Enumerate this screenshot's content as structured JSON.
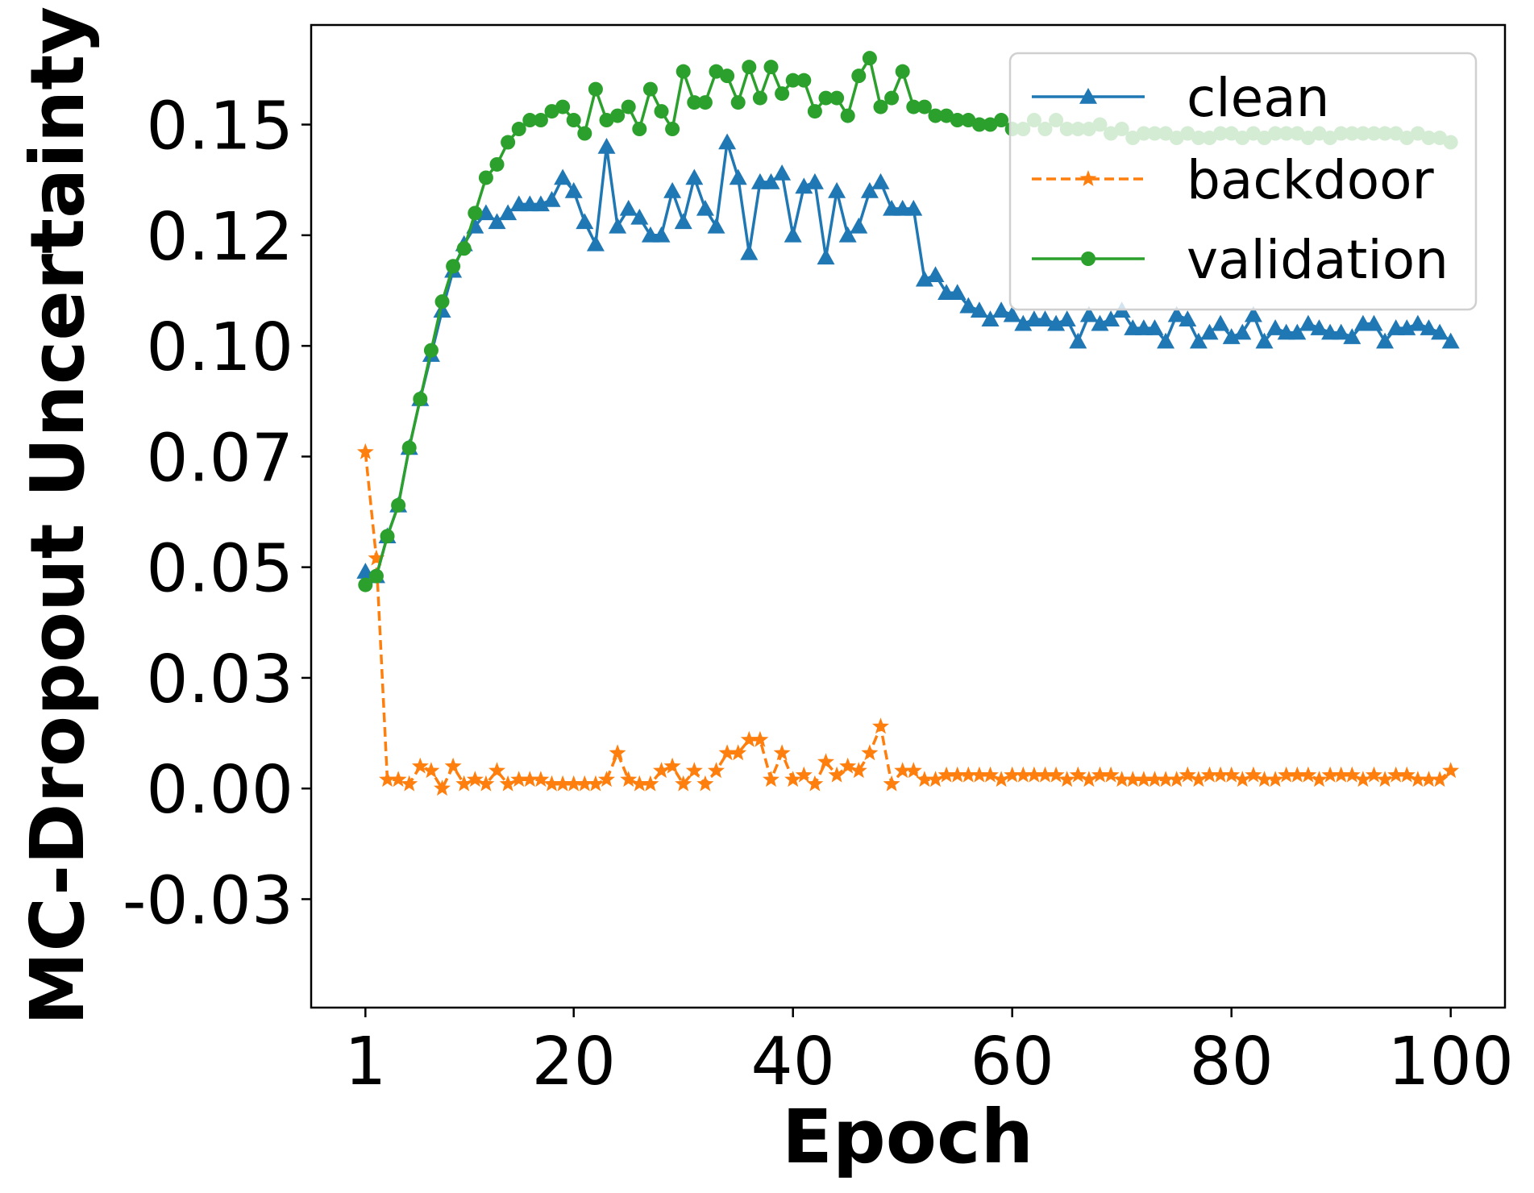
{
  "chart_data": {
    "type": "line",
    "title": "",
    "xlabel": "Epoch",
    "ylabel": "MC-Dropout Uncertainty",
    "xlim": [
      -3.95,
      104.95
    ],
    "ylim": [
      -0.0495,
      0.1725
    ],
    "x_ticks": [
      {
        "value": 1,
        "label": "1"
      },
      {
        "value": 20,
        "label": "20"
      },
      {
        "value": 40,
        "label": "40"
      },
      {
        "value": 60,
        "label": "60"
      },
      {
        "value": 80,
        "label": "80"
      },
      {
        "value": 100,
        "label": "100"
      }
    ],
    "y_ticks": [
      {
        "value": -0.025,
        "label": "-0.03"
      },
      {
        "value": 0.0,
        "label": "0.00"
      },
      {
        "value": 0.025,
        "label": "0.03"
      },
      {
        "value": 0.05,
        "label": "0.05"
      },
      {
        "value": 0.075,
        "label": "0.07"
      },
      {
        "value": 0.1,
        "label": "0.10"
      },
      {
        "value": 0.125,
        "label": "0.12"
      },
      {
        "value": 0.15,
        "label": "0.15"
      }
    ],
    "grid": false,
    "legend_position": "top-right",
    "x": [
      1,
      2,
      3,
      4,
      5,
      6,
      7,
      8,
      9,
      10,
      11,
      12,
      13,
      14,
      15,
      16,
      17,
      18,
      19,
      20,
      21,
      22,
      23,
      24,
      25,
      26,
      27,
      28,
      29,
      30,
      31,
      32,
      33,
      34,
      35,
      36,
      37,
      38,
      39,
      40,
      41,
      42,
      43,
      44,
      45,
      46,
      47,
      48,
      49,
      50,
      51,
      52,
      53,
      54,
      55,
      56,
      57,
      58,
      59,
      60,
      61,
      62,
      63,
      64,
      65,
      66,
      67,
      68,
      69,
      70,
      71,
      72,
      73,
      74,
      75,
      76,
      77,
      78,
      79,
      80,
      81,
      82,
      83,
      84,
      85,
      86,
      87,
      88,
      89,
      90,
      91,
      92,
      93,
      94,
      95,
      96,
      97,
      98,
      99,
      100
    ],
    "series": [
      {
        "name": "clean",
        "color": "#1f77b4",
        "marker": "triangle",
        "line_style": "solid",
        "values": [
          0.049,
          0.048,
          0.057,
          0.064,
          0.077,
          0.088,
          0.098,
          0.108,
          0.117,
          0.123,
          0.127,
          0.13,
          0.128,
          0.13,
          0.132,
          0.132,
          0.132,
          0.133,
          0.138,
          0.135,
          0.128,
          0.123,
          0.145,
          0.127,
          0.131,
          0.129,
          0.125,
          0.125,
          0.135,
          0.128,
          0.138,
          0.131,
          0.127,
          0.146,
          0.138,
          0.121,
          0.137,
          0.137,
          0.139,
          0.125,
          0.136,
          0.137,
          0.12,
          0.135,
          0.125,
          0.127,
          0.135,
          0.137,
          0.131,
          0.131,
          0.131,
          0.115,
          0.116,
          0.112,
          0.112,
          0.109,
          0.108,
          0.106,
          0.108,
          0.107,
          0.105,
          0.106,
          0.106,
          0.105,
          0.106,
          0.101,
          0.107,
          0.105,
          0.106,
          0.108,
          0.104,
          0.104,
          0.104,
          0.101,
          0.107,
          0.106,
          0.101,
          0.103,
          0.105,
          0.102,
          0.103,
          0.107,
          0.101,
          0.104,
          0.103,
          0.103,
          0.105,
          0.104,
          0.103,
          0.103,
          0.102,
          0.105,
          0.105,
          0.101,
          0.104,
          0.104,
          0.105,
          0.104,
          0.103,
          0.101
        ]
      },
      {
        "name": "backdoor",
        "color": "#ff7f0e",
        "marker": "star",
        "line_style": "dashed",
        "values": [
          0.076,
          0.052,
          0.002,
          0.002,
          0.001,
          0.005,
          0.004,
          0.0,
          0.005,
          0.001,
          0.002,
          0.001,
          0.004,
          0.001,
          0.002,
          0.002,
          0.002,
          0.001,
          0.001,
          0.001,
          0.001,
          0.001,
          0.002,
          0.008,
          0.002,
          0.001,
          0.001,
          0.004,
          0.005,
          0.001,
          0.004,
          0.001,
          0.004,
          0.008,
          0.008,
          0.011,
          0.011,
          0.002,
          0.008,
          0.002,
          0.003,
          0.001,
          0.006,
          0.003,
          0.005,
          0.004,
          0.008,
          0.014,
          0.001,
          0.004,
          0.004,
          0.002,
          0.002,
          0.003,
          0.003,
          0.003,
          0.003,
          0.003,
          0.002,
          0.003,
          0.003,
          0.003,
          0.003,
          0.003,
          0.002,
          0.003,
          0.002,
          0.003,
          0.003,
          0.002,
          0.002,
          0.002,
          0.002,
          0.002,
          0.002,
          0.003,
          0.002,
          0.003,
          0.003,
          0.003,
          0.002,
          0.003,
          0.002,
          0.002,
          0.003,
          0.003,
          0.003,
          0.002,
          0.003,
          0.003,
          0.003,
          0.002,
          0.003,
          0.002,
          0.003,
          0.003,
          0.002,
          0.002,
          0.002,
          0.004
        ]
      },
      {
        "name": "validation",
        "color": "#2ca02c",
        "marker": "circle",
        "line_style": "solid",
        "values": [
          0.046,
          0.048,
          0.057,
          0.064,
          0.077,
          0.088,
          0.099,
          0.11,
          0.118,
          0.122,
          0.13,
          0.138,
          0.141,
          0.146,
          0.149,
          0.151,
          0.151,
          0.153,
          0.154,
          0.151,
          0.148,
          0.158,
          0.151,
          0.152,
          0.154,
          0.149,
          0.158,
          0.153,
          0.149,
          0.162,
          0.155,
          0.155,
          0.162,
          0.161,
          0.155,
          0.163,
          0.156,
          0.163,
          0.157,
          0.16,
          0.16,
          0.153,
          0.156,
          0.156,
          0.152,
          0.161,
          0.165,
          0.154,
          0.156,
          0.162,
          0.154,
          0.154,
          0.152,
          0.152,
          0.151,
          0.151,
          0.15,
          0.15,
          0.151,
          0.149,
          0.149,
          0.151,
          0.149,
          0.151,
          0.149,
          0.149,
          0.149,
          0.15,
          0.148,
          0.149,
          0.147,
          0.148,
          0.148,
          0.148,
          0.147,
          0.148,
          0.147,
          0.147,
          0.148,
          0.148,
          0.147,
          0.148,
          0.147,
          0.148,
          0.148,
          0.148,
          0.147,
          0.148,
          0.147,
          0.148,
          0.148,
          0.148,
          0.148,
          0.148,
          0.148,
          0.147,
          0.148,
          0.147,
          0.147,
          0.146
        ]
      }
    ]
  }
}
